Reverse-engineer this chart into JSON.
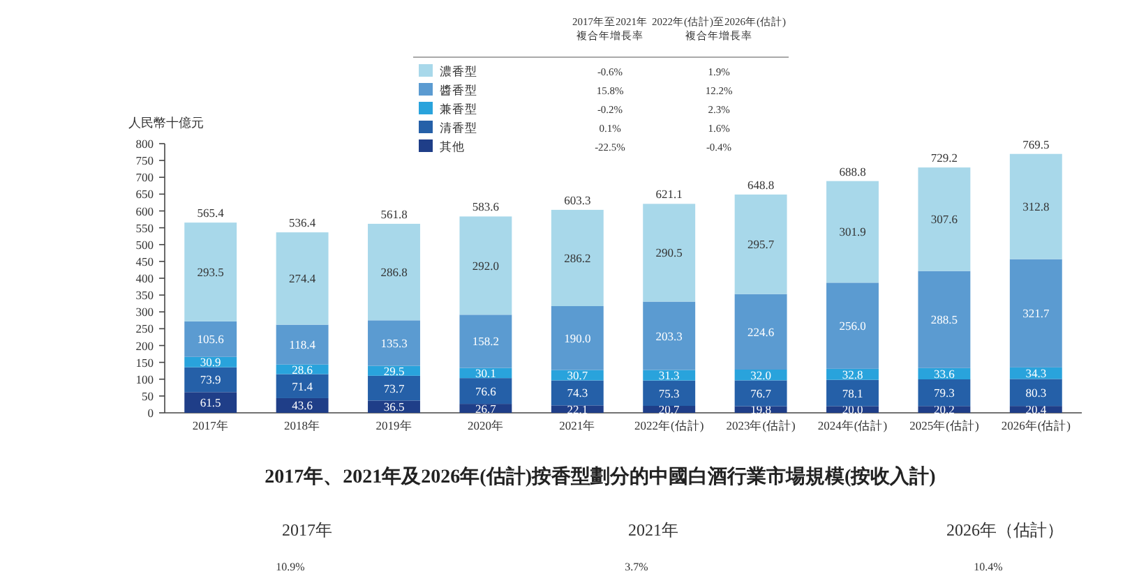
{
  "chart_data": [
    {
      "type": "bar",
      "stacked": true,
      "ylabel": "人民幣十億元",
      "categories": [
        "2017年",
        "2018年",
        "2019年",
        "2020年",
        "2021年",
        "2022年(估計)",
        "2023年(估計)",
        "2024年(估計)",
        "2025年(估計)",
        "2026年(估計)"
      ],
      "series": [
        {
          "name": "其他",
          "color": "#1f3e88",
          "values": [
            61.5,
            43.6,
            36.5,
            26.7,
            22.1,
            20.7,
            19.8,
            20.0,
            20.2,
            20.4
          ]
        },
        {
          "name": "清香型",
          "color": "#2560a8",
          "values": [
            73.9,
            71.4,
            73.7,
            76.6,
            74.3,
            75.3,
            76.7,
            78.1,
            79.3,
            80.3
          ]
        },
        {
          "name": "兼香型",
          "color": "#29a3dc",
          "values": [
            30.9,
            28.6,
            29.5,
            30.1,
            30.7,
            31.3,
            32.0,
            32.8,
            33.6,
            34.3
          ]
        },
        {
          "name": "醬香型",
          "color": "#5b9bd1",
          "values": [
            105.6,
            118.4,
            135.3,
            158.2,
            190.0,
            203.3,
            224.6,
            256.0,
            288.5,
            321.7
          ]
        },
        {
          "name": "濃香型",
          "color": "#a8d8ea",
          "values": [
            293.5,
            274.4,
            286.8,
            292.0,
            286.2,
            290.5,
            295.7,
            301.9,
            307.6,
            312.8
          ]
        }
      ],
      "totals": [
        "565.4",
        "536.4",
        "561.8",
        "583.6",
        "603.3",
        "621.1",
        "648.8",
        "688.8",
        "729.2",
        "769.5"
      ],
      "value_labels": [
        [
          "61.5",
          "43.6",
          "36.5",
          "26.7",
          "22.1",
          "20.7",
          "19.8",
          "20.0",
          "20.2",
          "20.4"
        ],
        [
          "73.9",
          "71.4",
          "73.7",
          "76.6",
          "74.3",
          "75.3",
          "76.7",
          "78.1",
          "79.3",
          "80.3"
        ],
        [
          "30.9",
          "28.6",
          "29.5",
          "30.1",
          "30.7",
          "31.3",
          "32.0",
          "32.8",
          "33.6",
          "34.3"
        ],
        [
          "105.6",
          "118.4",
          "135.3",
          "158.2",
          "190.0",
          "203.3",
          "224.6",
          "256.0",
          "288.5",
          "321.7"
        ],
        [
          "293.5",
          "274.4",
          "286.8",
          "292.0",
          "286.2",
          "290.5",
          "295.7",
          "301.9",
          "307.6",
          "312.8"
        ]
      ],
      "ylim": [
        0,
        800
      ],
      "yticks": [
        0,
        50,
        100,
        150,
        200,
        250,
        300,
        350,
        400,
        450,
        500,
        550,
        600,
        650,
        700,
        750,
        800
      ],
      "legend": "top",
      "grid": false,
      "annotations": [
        "2017年至2021年",
        "複合年增長率",
        "2022年(估計)至2026年(估計)",
        "複合年增長率",
        "-22.5%",
        "-0.4%",
        "0.1%",
        "1.6%",
        "-0.2%",
        "2.3%",
        "15.8%",
        "12.2%",
        "-0.6%",
        "1.9%"
      ]
    },
    {
      "type": "other",
      "title": "2017年、2021年及2026年(估計)按香型劃分的中國白酒行業市場規模(按收入計)",
      "annotations": [
        "2017年",
        "2021年",
        "2026年（估計）",
        "10.9%",
        "3.7%",
        "10.4%"
      ]
    }
  ]
}
